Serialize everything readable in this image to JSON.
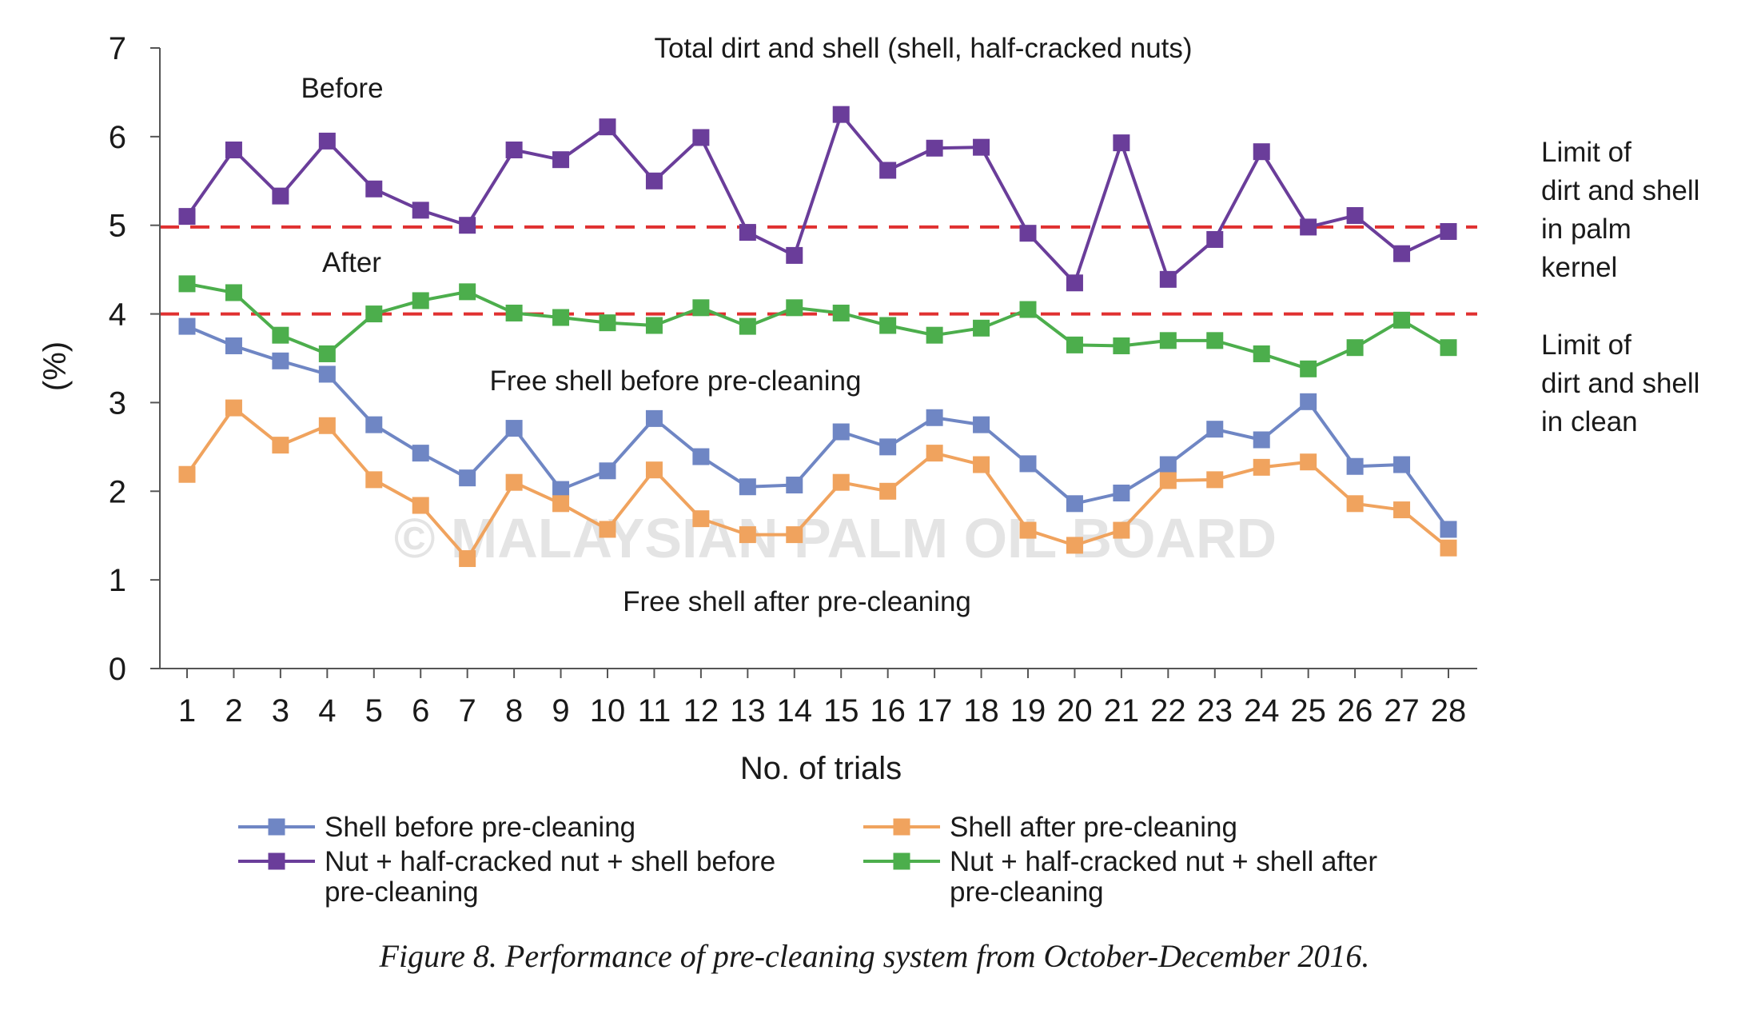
{
  "chart_data": {
    "type": "line",
    "xlabel": "No. of trials",
    "ylabel": "(%)",
    "xlim": [
      1,
      28
    ],
    "ylim": [
      0,
      7
    ],
    "yticks": [
      0,
      1,
      2,
      3,
      4,
      5,
      6,
      7
    ],
    "x": [
      1,
      2,
      3,
      4,
      5,
      6,
      7,
      8,
      9,
      10,
      11,
      12,
      13,
      14,
      15,
      16,
      17,
      18,
      19,
      20,
      21,
      22,
      23,
      24,
      25,
      26,
      27,
      28
    ],
    "series": [
      {
        "name": "Shell before pre-cleaning",
        "color": "#6f86c4",
        "values": [
          3.86,
          3.64,
          3.47,
          3.32,
          2.75,
          2.43,
          2.15,
          2.71,
          2.02,
          2.23,
          2.82,
          2.39,
          2.05,
          2.07,
          2.67,
          2.5,
          2.83,
          2.75,
          2.31,
          1.86,
          1.98,
          2.3,
          2.7,
          2.58,
          3.01,
          2.28,
          2.3,
          1.57
        ]
      },
      {
        "name": "Shell after pre-cleaning",
        "color": "#f0a35e",
        "values": [
          2.19,
          2.94,
          2.52,
          2.74,
          2.13,
          1.84,
          1.24,
          2.1,
          1.86,
          1.57,
          2.24,
          1.69,
          1.51,
          1.51,
          2.1,
          2.0,
          2.43,
          2.3,
          1.56,
          1.39,
          1.56,
          2.12,
          2.13,
          2.27,
          2.33,
          1.86,
          1.79,
          1.36
        ]
      },
      {
        "name": "Nut + half-cracked nut + shell before pre-cleaning",
        "color": "#6a3d9a",
        "values": [
          5.1,
          5.85,
          5.33,
          5.95,
          5.41,
          5.17,
          5.0,
          5.85,
          5.74,
          6.11,
          5.5,
          5.99,
          4.92,
          4.66,
          6.25,
          5.62,
          5.87,
          5.88,
          4.91,
          4.35,
          5.93,
          4.39,
          4.84,
          5.83,
          4.98,
          5.11,
          4.68,
          4.93
        ]
      },
      {
        "name": "Nut + half-cracked nut + shell after pre-cleaning",
        "color": "#4cae4c",
        "values": [
          4.34,
          4.24,
          3.76,
          3.55,
          4.0,
          4.15,
          4.25,
          4.01,
          3.96,
          3.9,
          3.87,
          4.07,
          3.86,
          4.07,
          4.01,
          3.87,
          3.76,
          3.84,
          4.05,
          3.65,
          3.64,
          3.7,
          3.7,
          3.55,
          3.38,
          3.62,
          3.93,
          3.62
        ]
      }
    ],
    "reference_lines": [
      {
        "y": 4.98,
        "color": "#e03030",
        "style": "dashed"
      },
      {
        "y": 4.0,
        "color": "#e03030",
        "style": "dashed"
      }
    ],
    "annotations": [
      "Total dirt and shell (shell, half-cracked nuts)",
      "Before",
      "After",
      "Free shell before pre-cleaning",
      "Free shell after pre-cleaning"
    ],
    "limit_labels": [
      [
        "Limit of",
        "dirt and shell",
        "in palm",
        "kernel"
      ],
      [
        "Limit of",
        "dirt and shell",
        "in clean"
      ]
    ],
    "legend": {
      "placement": "bottom",
      "entries": [
        {
          "lines": [
            "Shell before pre-cleaning"
          ],
          "color": "#6f86c4"
        },
        {
          "lines": [
            "Shell after pre-cleaning"
          ],
          "color": "#f0a35e"
        },
        {
          "lines": [
            "Nut + half-cracked nut + shell before",
            "pre-cleaning"
          ],
          "color": "#6a3d9a"
        },
        {
          "lines": [
            "Nut + half-cracked nut + shell after",
            "pre-cleaning"
          ],
          "color": "#4cae4c"
        }
      ]
    },
    "grid": false
  },
  "watermark": "© MALAYSIAN PALM OIL BOARD",
  "caption": "Figure 8. Performance of pre-cleaning system from October-December 2016."
}
